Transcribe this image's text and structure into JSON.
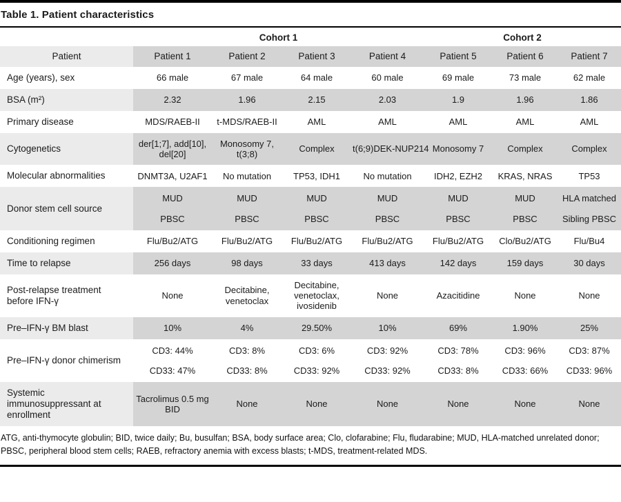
{
  "title": "Table 1. Patient characteristics",
  "colors": {
    "shade_dark": "#d4d4d4",
    "shade_light": "#ebebeb",
    "rule": "#000000",
    "text": "#1b1b1b"
  },
  "table": {
    "cohort_headers": [
      {
        "label": "",
        "span": 1
      },
      {
        "label": "Cohort 1",
        "span": 4
      },
      {
        "label": "Cohort 2",
        "span": 3
      }
    ],
    "column_header": {
      "label": "Patient",
      "columns": [
        "Patient 1",
        "Patient 2",
        "Patient 3",
        "Patient 4",
        "Patient 5",
        "Patient 6",
        "Patient 7"
      ]
    },
    "rows": [
      {
        "label": "Age (years), sex",
        "shaded": false,
        "values": [
          "66 male",
          "67 male",
          "64 male",
          "60 male",
          "69 male",
          "73 male",
          "62 male"
        ]
      },
      {
        "label": "BSA (m²)",
        "shaded": true,
        "values": [
          "2.32",
          "1.96",
          "2.15",
          "2.03",
          "1.9",
          "1.96",
          "1.86"
        ]
      },
      {
        "label": "Primary disease",
        "shaded": false,
        "values": [
          "MDS/RAEB-II",
          "t-MDS/RAEB-II",
          "AML",
          "AML",
          "AML",
          "AML",
          "AML"
        ]
      },
      {
        "label": "Cytogenetics",
        "shaded": true,
        "values": [
          "der[1;7], add[10], del[20]",
          "Monosomy 7, t(3;8)",
          "Complex",
          "t(6;9)DEK-NUP214",
          "Monosomy 7",
          "Complex",
          "Complex"
        ]
      },
      {
        "label": "Molecular abnormalities",
        "shaded": false,
        "values": [
          "DNMT3A, U2AF1",
          "No mutation",
          "TP53, IDH1",
          "No mutation",
          "IDH2, EZH2",
          "KRAS, NRAS",
          "TP53"
        ]
      },
      {
        "label": "Donor stem cell source",
        "shaded": true,
        "spread": true,
        "values": [
          [
            "MUD",
            "PBSC"
          ],
          [
            "MUD",
            "PBSC"
          ],
          [
            "MUD",
            "PBSC"
          ],
          [
            "MUD",
            "PBSC"
          ],
          [
            "MUD",
            "PBSC"
          ],
          [
            "MUD",
            "PBSC"
          ],
          [
            "HLA matched",
            "Sibling PBSC"
          ]
        ]
      },
      {
        "label": "Conditioning regimen",
        "shaded": false,
        "values": [
          "Flu/Bu2/ATG",
          "Flu/Bu2/ATG",
          "Flu/Bu2/ATG",
          "Flu/Bu2/ATG",
          "Flu/Bu2/ATG",
          "Clo/Bu2/ATG",
          "Flu/Bu4"
        ]
      },
      {
        "label": "Time to relapse",
        "shaded": true,
        "values": [
          "256 days",
          "98 days",
          "33 days",
          "413 days",
          "142 days",
          "159 days",
          "30 days"
        ]
      },
      {
        "label": "Post-relapse treatment before IFN-γ",
        "shaded": false,
        "values": [
          "None",
          "Decitabine, venetoclax",
          "Decitabine, venetoclax, ivosidenib",
          "None",
          "Azacitidine",
          "None",
          "None"
        ]
      },
      {
        "label": "Pre–IFN-γ BM blast",
        "shaded": true,
        "values": [
          "10%",
          "4%",
          "29.50%",
          "10%",
          "69%",
          "1.90%",
          "25%"
        ]
      },
      {
        "label": "Pre–IFN-γ donor chimerism",
        "shaded": false,
        "spread": true,
        "values": [
          [
            "CD3: 44%",
            "CD33: 47%"
          ],
          [
            "CD3: 8%",
            "CD33: 8%"
          ],
          [
            "CD3: 6%",
            "CD33: 92%"
          ],
          [
            "CD3: 92%",
            "CD33: 92%"
          ],
          [
            "CD3: 78%",
            "CD33: 8%"
          ],
          [
            "CD3: 96%",
            "CD33: 66%"
          ],
          [
            "CD3: 87%",
            "CD33: 96%"
          ]
        ]
      },
      {
        "label": "Systemic immunosuppressant at enrollment",
        "shaded": true,
        "values": [
          "Tacrolimus 0.5 mg BID",
          "None",
          "None",
          "None",
          "None",
          "None",
          "None"
        ]
      }
    ]
  },
  "footnote": "ATG, anti-thymocyte globulin; BID, twice daily; Bu, busulfan; BSA, body surface area; Clo, clofarabine; Flu, fludarabine; MUD, HLA-matched unrelated donor; PBSC, peripheral blood stem cells; RAEB, refractory anemia with excess blasts; t-MDS, treatment-related MDS."
}
